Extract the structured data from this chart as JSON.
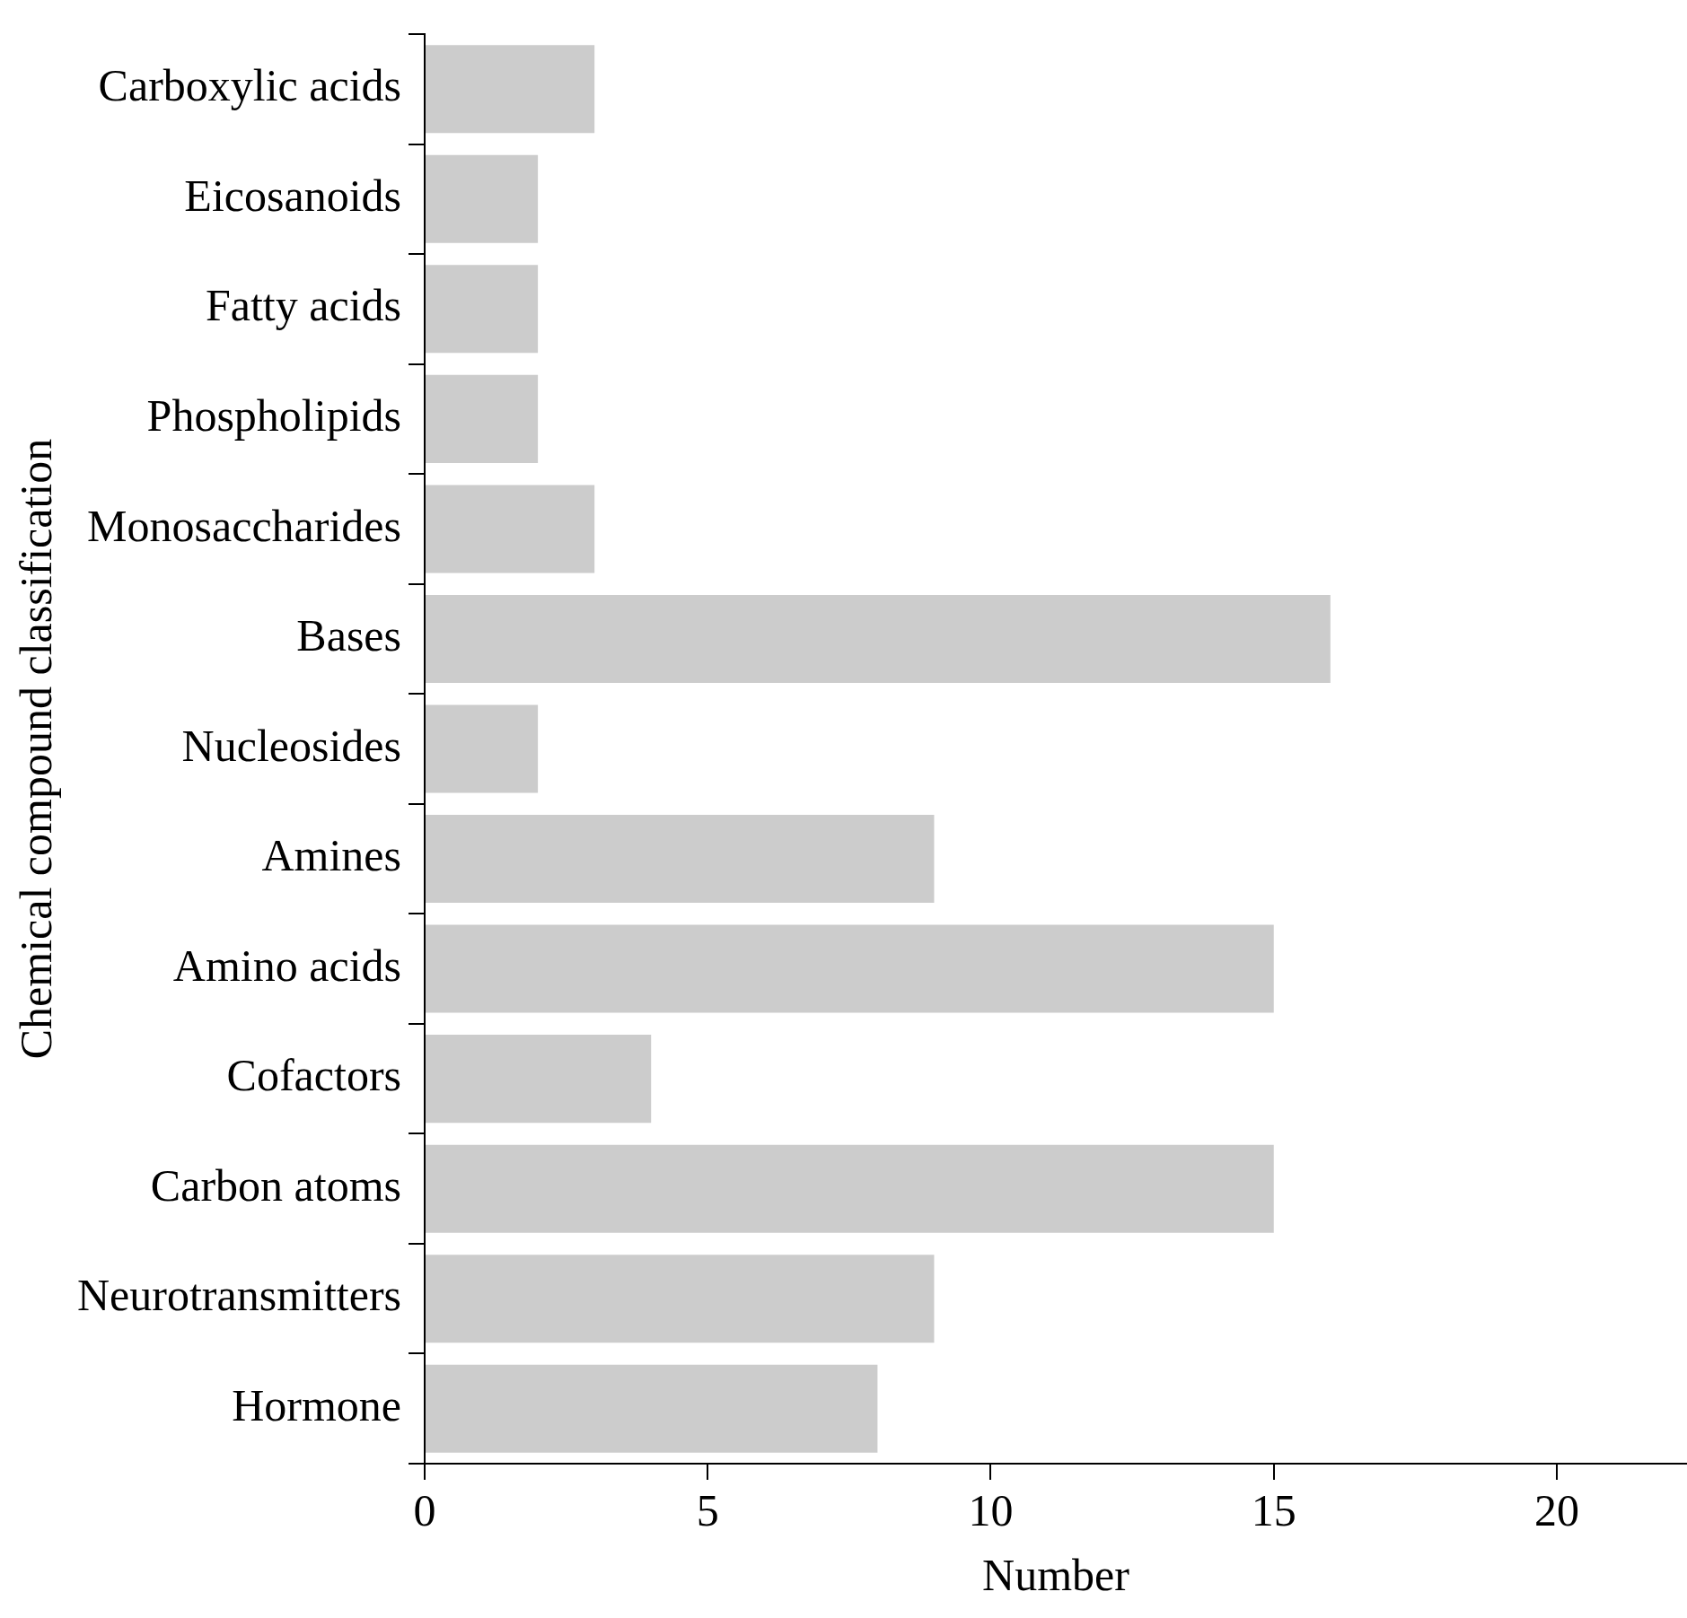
{
  "chart_data": {
    "type": "bar",
    "orientation": "horizontal",
    "xlabel": "Number",
    "ylabel": "Chemical compound classification",
    "categories": [
      "Carboxylic acids",
      "Eicosanoids",
      "Fatty acids",
      "Phospholipids",
      "Monosaccharides",
      "Bases",
      "Nucleosides",
      "Amines",
      "Amino acids",
      "Cofactors",
      "Carbon atoms",
      "Neurotransmitters",
      "Hormone"
    ],
    "values": [
      3,
      2,
      2,
      2,
      3,
      16,
      2,
      9,
      15,
      4,
      15,
      9,
      8
    ],
    "color": "#cccccc",
    "xlim": [
      0,
      22.3
    ],
    "xticks": [
      0,
      5,
      10,
      15,
      20
    ],
    "grid": false,
    "legend": false
  }
}
